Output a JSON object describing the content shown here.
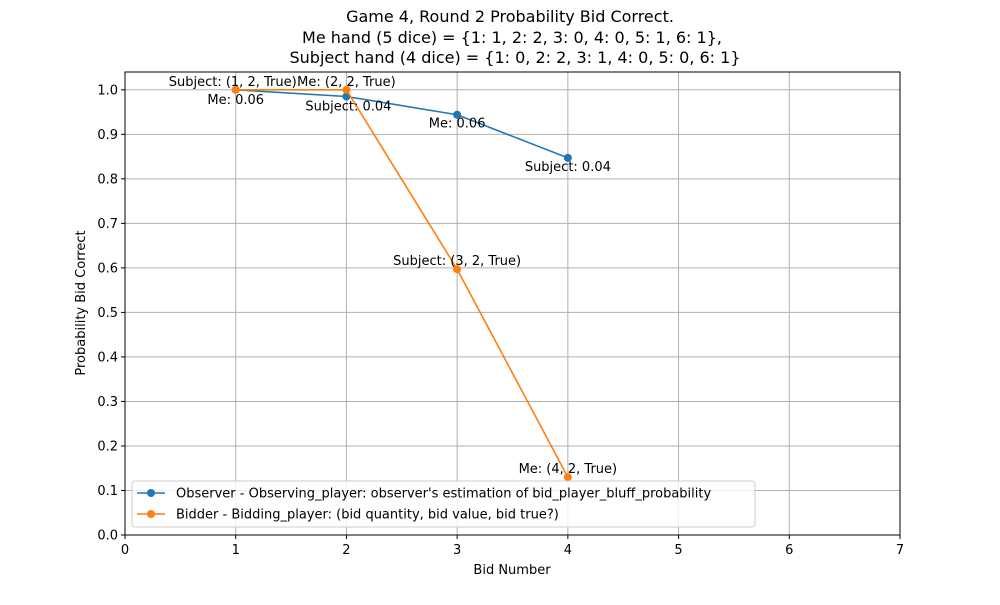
{
  "chart_data": {
    "type": "line",
    "title_lines": [
      "Game 4, Round 2 Probability Bid Correct.",
      "Me hand (5 dice) = {1: 1, 2: 2, 3: 0, 4: 0, 5: 1, 6: 1},",
      "Subject hand (4 dice) = {1: 0, 2: 2, 3: 1, 4: 0, 5: 0, 6: 1}"
    ],
    "xlabel": "Bid Number",
    "ylabel": "Probability Bid Correct",
    "xlim": [
      0,
      7
    ],
    "ylim": [
      0,
      1.04
    ],
    "xticks": [
      0,
      1,
      2,
      3,
      4,
      5,
      6,
      7
    ],
    "yticks": [
      0.0,
      0.1,
      0.2,
      0.3,
      0.4,
      0.5,
      0.6,
      0.7,
      0.8,
      0.9,
      1.0
    ],
    "grid": true,
    "legend_position": "lower-left",
    "series": [
      {
        "name": "Observer - Observing_player: observer's estimation of bid_player_bluff_probability",
        "color": "#1f77b4",
        "x": [
          1,
          2,
          3,
          4
        ],
        "y": [
          1.0,
          0.985,
          0.944,
          0.847
        ],
        "labels": [
          "Me: 0.06",
          "Subject: 0.04",
          "Me: 0.06",
          "Subject: 0.04"
        ]
      },
      {
        "name": "Bidder -  Bidding_player: (bid quantity, bid value, bid true?)",
        "color": "#ff7f0e",
        "x": [
          1,
          2,
          3,
          4
        ],
        "y": [
          1.0,
          1.0,
          0.597,
          0.13
        ],
        "labels": [
          "Subject: (1, 2, True)",
          "Me: (2, 2, True)",
          "Subject: (3, 2, True)",
          "Me: (4, 2, True)"
        ]
      }
    ]
  }
}
